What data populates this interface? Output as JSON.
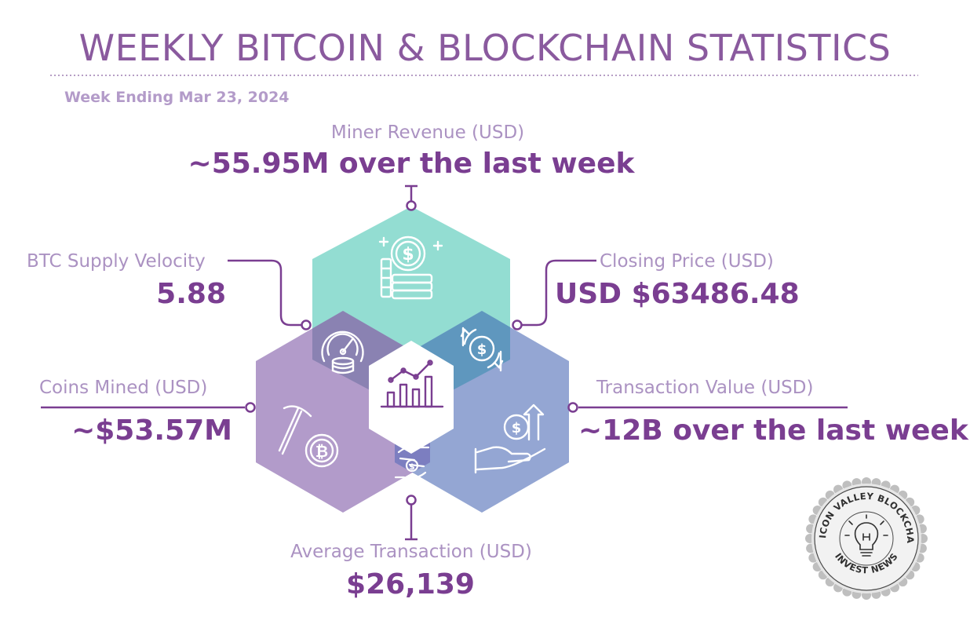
{
  "header": {
    "title": "WEEKLY BITCOIN & BLOCKCHAIN STATISTICS",
    "week": "Week Ending Mar 23, 2024"
  },
  "stats": {
    "miner_revenue": {
      "label": "Miner Revenue (USD)",
      "value": "~55.95M over the last week",
      "icon": "dollar-coin-stack-icon",
      "color": "#93ddd2"
    },
    "supply_velocity": {
      "label": "BTC Supply Velocity",
      "value": "5.88",
      "icon": "speedometer-coins-icon",
      "color": "#8a82b2"
    },
    "closing_price": {
      "label": "Closing Price (USD)",
      "value": "USD $63486.48",
      "icon": "dollar-exchange-arrows-icon",
      "color": "#5f97be"
    },
    "coins_mined": {
      "label": "Coins Mined (USD)",
      "value": "~$53.57M",
      "icon": "pickaxe-bitcoin-icon",
      "color": "#b29bca"
    },
    "transaction_value": {
      "label": "Transaction Value (USD)",
      "value": "~12B over the last week",
      "icon": "hand-coin-growth-icon",
      "color": "#94a6d3"
    },
    "average_transaction": {
      "label": "Average Transaction (USD)",
      "value": "$26,139",
      "icon": "hands-exchange-coin-icon",
      "color": "#7c7ec0"
    },
    "center": {
      "icon": "bar-chart-trend-icon"
    }
  },
  "seal": {
    "top_text": "SILICON VALLEY BLOCKCHAIN",
    "bottom_text": "INVEST NEWS",
    "icon": "lightbulb-icon"
  }
}
